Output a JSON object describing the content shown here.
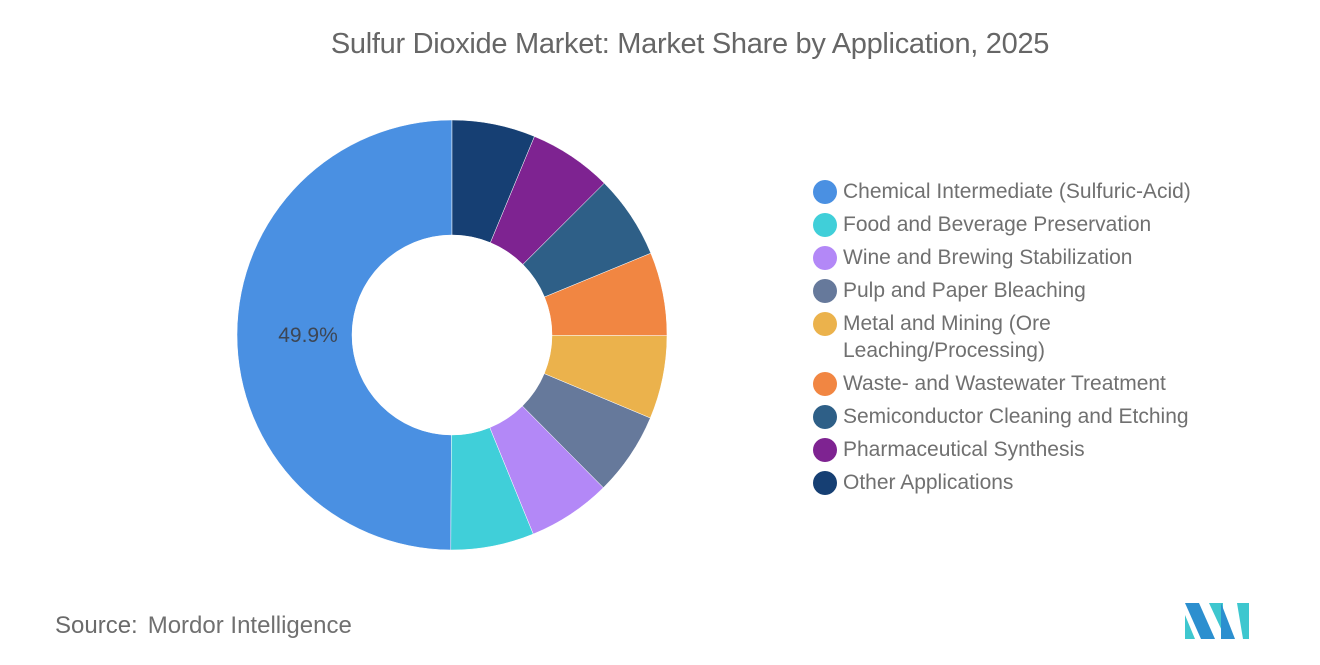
{
  "header": {
    "title": "Sulfur Dioxide Market: Market Share by Application, 2025"
  },
  "footer": {
    "source_label": "Source:",
    "source_value": "Mordor Intelligence",
    "logo": "mordor-intelligence-logo"
  },
  "chart_data": {
    "type": "pie",
    "variant": "donut",
    "title": "Sulfur Dioxide Market: Market Share by Application, 2025",
    "start_angle": "12 o'clock, counter-clockwise order of legend from bottom",
    "legend_position": "right",
    "categories": [
      "Chemical Intermediate (Sulfuric-Acid)",
      "Food and Beverage Preservation",
      "Wine and Brewing Stabilization",
      "Pulp and Paper Bleaching",
      "Metal and Mining (Ore Leaching/Processing)",
      "Waste- and Wastewater Treatment",
      "Semiconductor Cleaning and Etching",
      "Pharmaceutical Synthesis",
      "Other Applications"
    ],
    "values": [
      49.9,
      6.26,
      6.26,
      6.26,
      6.26,
      6.26,
      6.26,
      6.26,
      6.26
    ],
    "colors": [
      "#4a90e2",
      "#40cfd9",
      "#b388f7",
      "#66799b",
      "#ebb24c",
      "#f18642",
      "#2e5f87",
      "#7e2391",
      "#163f73"
    ],
    "data_labels": [
      {
        "category": "Chemical Intermediate (Sulfuric-Acid)",
        "text": "49.9%"
      }
    ]
  },
  "legend": {
    "items": [
      {
        "label": "Chemical Intermediate (Sulfuric-Acid)",
        "color": "#4a90e2"
      },
      {
        "label": "Food and Beverage Preservation",
        "color": "#40cfd9"
      },
      {
        "label": "Wine and Brewing Stabilization",
        "color": "#b388f7"
      },
      {
        "label": "Pulp and Paper Bleaching",
        "color": "#66799b"
      },
      {
        "label": "Metal and Mining (Ore Leaching/Processing)",
        "color": "#ebb24c"
      },
      {
        "label": "Waste- and Wastewater Treatment",
        "color": "#f18642"
      },
      {
        "label": "Semiconductor Cleaning and Etching",
        "color": "#2e5f87"
      },
      {
        "label": "Pharmaceutical Synthesis",
        "color": "#7e2391"
      },
      {
        "label": "Other Applications",
        "color": "#163f73"
      }
    ]
  }
}
